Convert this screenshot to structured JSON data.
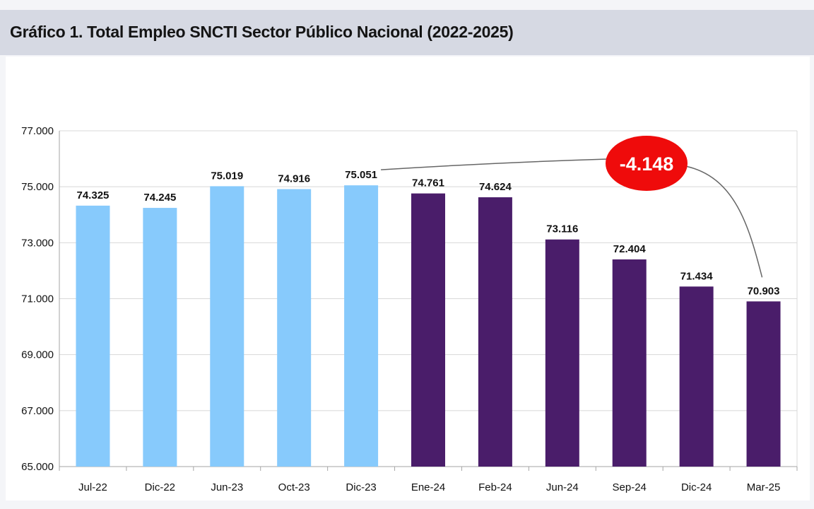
{
  "page": {
    "title": "Gráfico 1. Total Empleo SNCTI Sector Público Nacional (2022-2025)"
  },
  "colors": {
    "period_2022_2023": "#87cafc",
    "period_2024_2025": "#4a1d6a",
    "badge": "#ef0b0b",
    "grid": "#d8d8d8",
    "axis": "#a6a6a6"
  },
  "chart_data": {
    "type": "bar",
    "title": "Gráfico 1. Total Empleo SNCTI Sector Público Nacional (2022-2025)",
    "xlabel": "",
    "ylabel": "",
    "categories": [
      "Jul-22",
      "Dic-22",
      "Jun-23",
      "Oct-23",
      "Dic-23",
      "Ene-24",
      "Feb-24",
      "Jun-24",
      "Sep-24",
      "Dic-24",
      "Mar-25"
    ],
    "values": [
      74325,
      74245,
      75019,
      74916,
      75051,
      74761,
      74624,
      73116,
      72404,
      71434,
      70903
    ],
    "value_labels": [
      "74.325",
      "74.245",
      "75.019",
      "74.916",
      "75.051",
      "74.761",
      "74.624",
      "73.116",
      "72.404",
      "71.434",
      "70.903"
    ],
    "bar_colors": [
      "#87cafc",
      "#87cafc",
      "#87cafc",
      "#87cafc",
      "#87cafc",
      "#4a1d6a",
      "#4a1d6a",
      "#4a1d6a",
      "#4a1d6a",
      "#4a1d6a",
      "#4a1d6a"
    ],
    "ylim": [
      65000,
      77000
    ],
    "yticks": [
      65000,
      67000,
      69000,
      71000,
      73000,
      75000,
      77000
    ],
    "ytick_labels": [
      "65.000",
      "67.000",
      "69.000",
      "71.000",
      "73.000",
      "75.000",
      "77.000"
    ],
    "grid": true,
    "legend": "none",
    "annotation": {
      "text": "-4.148",
      "from_category": "Dic-23",
      "to_category": "Mar-25"
    }
  }
}
